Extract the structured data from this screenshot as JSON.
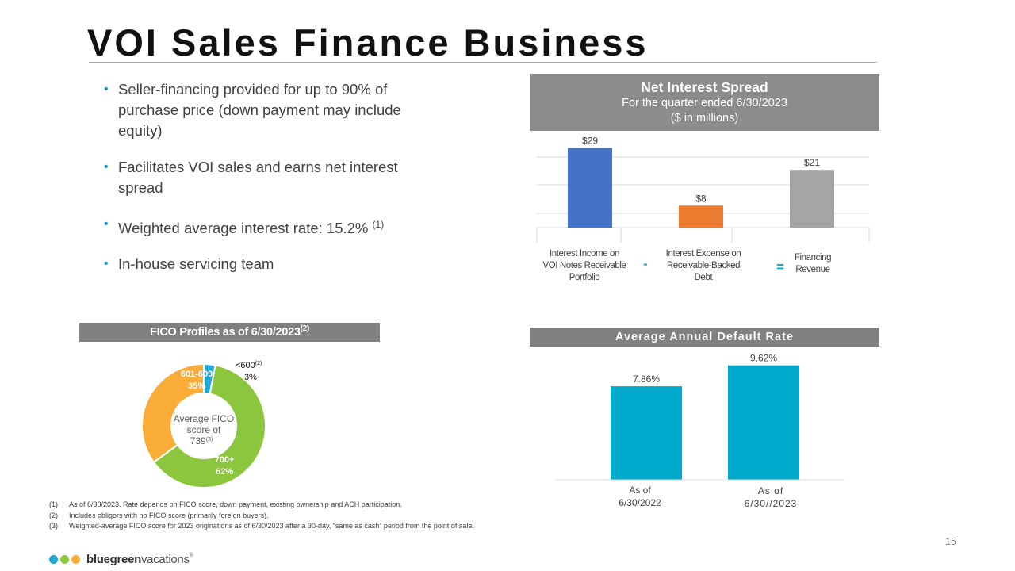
{
  "title": "VOI Sales Finance Business",
  "bullets": [
    {
      "text": "Seller-financing provided for up to 90% of purchase price (down payment may include equity)"
    },
    {
      "text": "Facilitates VOI sales and earns net interest spread"
    },
    {
      "text": "Weighted average interest rate: 15.2%",
      "sup": "(1)"
    },
    {
      "text": "In-house servicing team"
    }
  ],
  "net_interest": {
    "title": "Net Interest Spread",
    "subtitle": "For the quarter ended 6/30/2023",
    "units": "($ in millions)",
    "operators": [
      "-",
      "="
    ]
  },
  "fico": {
    "title": "FICO Profiles as of 6/30/2023",
    "title_sup": "(2)",
    "center": {
      "line1": "Average FICO",
      "line2": "score of",
      "value": "739",
      "sup": "(3)"
    }
  },
  "default_rate": {
    "title": "Average  Annual  Default  Rate"
  },
  "chart_data": [
    {
      "type": "bar",
      "title": "Net Interest Spread",
      "categories": [
        "Interest Income on VOI Notes Receivable Portfolio",
        "Interest Expense on Receivable-Backed Debt",
        "Financing Revenue"
      ],
      "values": [
        29,
        8,
        21
      ],
      "data_labels": [
        "$29",
        "$8",
        "$21"
      ],
      "colors": [
        "#4472c4",
        "#ed7d31",
        "#a5a5a5"
      ],
      "ylim": [
        0,
        30
      ],
      "grid": true
    },
    {
      "type": "pie",
      "title": "FICO Profiles as of 6/30/2023",
      "slices": [
        {
          "label": "<600",
          "sup": "(2)",
          "value": 3,
          "value_label": "3%",
          "color": "#1fa6d3"
        },
        {
          "label": "700+",
          "value": 62,
          "value_label": "62%",
          "color": "#8cc63f"
        },
        {
          "label": "601-699",
          "value": 35,
          "value_label": "35%",
          "color": "#f9ac38"
        }
      ]
    },
    {
      "type": "bar",
      "title": "Average  Annual  Default  Rate",
      "categories": [
        "As of 6/30/2022",
        "As of 6/30//2023"
      ],
      "values": [
        7.86,
        9.62
      ],
      "data_labels": [
        "7.86%",
        "9.62%"
      ],
      "color": "#00aacc",
      "ylim": [
        0,
        10
      ]
    }
  ],
  "footnotes": [
    {
      "num": "(1)",
      "text": "As of 6/30/2023.  Rate depends on FICO  score, down payment, existing ownership and ACH participation."
    },
    {
      "num": "(2)",
      "text": "Includes obligors with no FICO  score (primarily foreign buyers)."
    },
    {
      "num": "(3)",
      "text": "Weighted-average FICO score for 2023 originations as of 6/30/2023 after a 30-day, “same as cash” period from the point of sale."
    }
  ],
  "page_number": "15",
  "logo": {
    "brand_a": "bluegreen",
    "brand_b": "vacations",
    "reg": "®",
    "colors": [
      "#1fa6d3",
      "#8cc63f",
      "#f9ac38"
    ]
  }
}
